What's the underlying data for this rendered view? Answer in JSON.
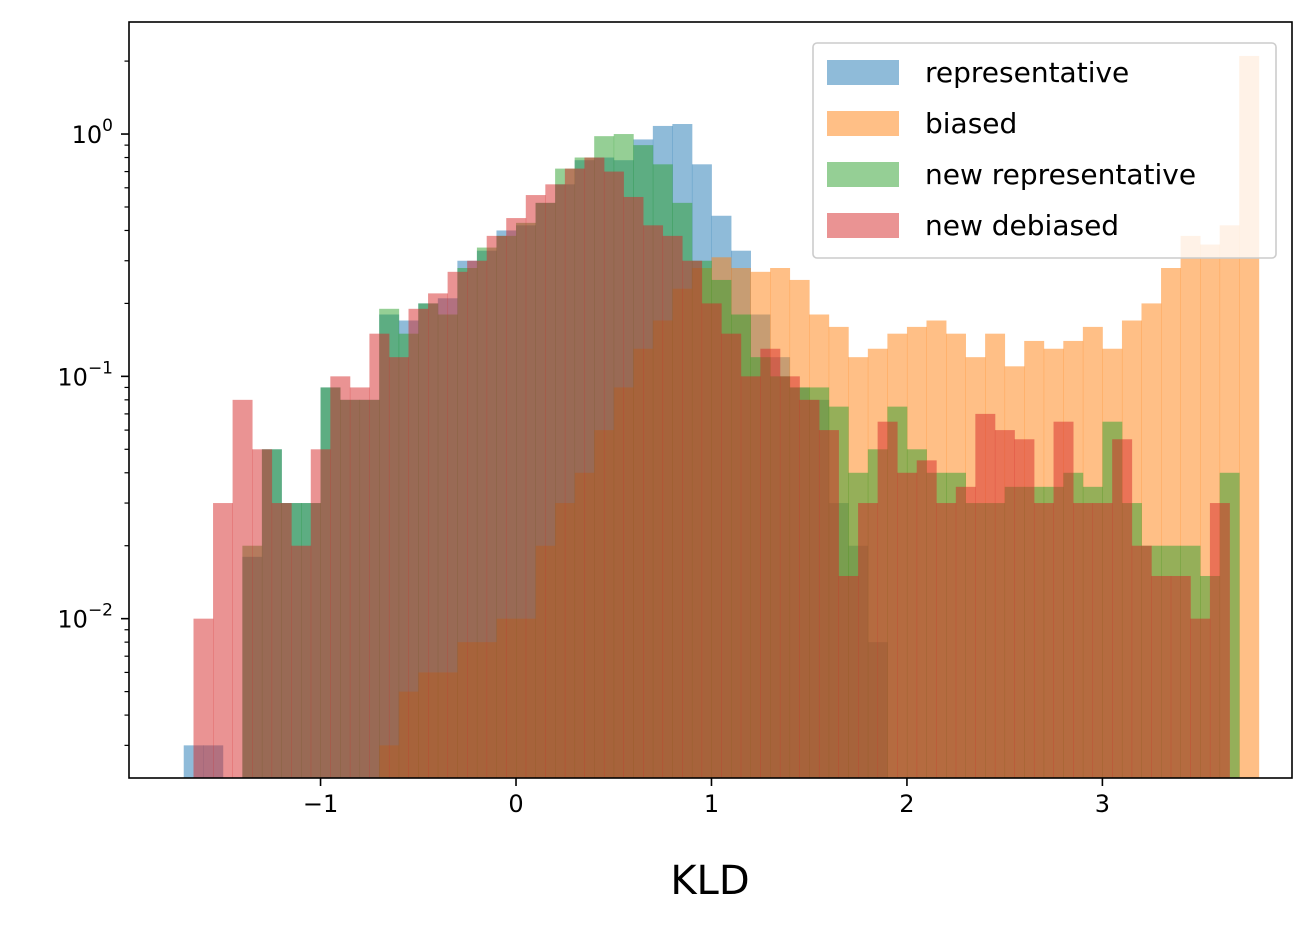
{
  "chart_data": {
    "type": "histogram",
    "xlabel": "KLD",
    "ylabel": "",
    "title": "",
    "xlim": [
      -1.98,
      3.97
    ],
    "ylim": [
      0.0022,
      2.9
    ],
    "yscale": "log",
    "xticks": [
      {
        "value": -1,
        "label": "−1"
      },
      {
        "value": 0,
        "label": "0"
      },
      {
        "value": 1,
        "label": "1"
      },
      {
        "value": 2,
        "label": "2"
      },
      {
        "value": 3,
        "label": "3"
      }
    ],
    "yticks": [
      {
        "value": 0.01,
        "base": "10",
        "exp": "−2"
      },
      {
        "value": 0.1,
        "base": "10",
        "exp": "−1"
      },
      {
        "value": 1,
        "base": "10",
        "exp": "0"
      }
    ],
    "legend": {
      "position": "top-right"
    },
    "series": [
      {
        "name": "representative",
        "color": "#1f77b4",
        "opacity": 0.5,
        "bins": [
          [
            -1.7,
            -1.6,
            0.003
          ],
          [
            -1.6,
            -1.5,
            0.003
          ],
          [
            -1.4,
            -1.3,
            0.018
          ],
          [
            -1.3,
            -1.2,
            0.05
          ],
          [
            -1.2,
            -1.1,
            0.03
          ],
          [
            -1.1,
            -1.0,
            0.03
          ],
          [
            -1.0,
            -0.9,
            0.09
          ],
          [
            -0.9,
            -0.8,
            0.08
          ],
          [
            -0.8,
            -0.7,
            0.08
          ],
          [
            -0.7,
            -0.6,
            0.18
          ],
          [
            -0.6,
            -0.5,
            0.17
          ],
          [
            -0.5,
            -0.4,
            0.2
          ],
          [
            -0.4,
            -0.3,
            0.21
          ],
          [
            -0.3,
            -0.2,
            0.3
          ],
          [
            -0.2,
            -0.1,
            0.33
          ],
          [
            -0.1,
            0.0,
            0.4
          ],
          [
            0.0,
            0.1,
            0.42
          ],
          [
            0.1,
            0.2,
            0.52
          ],
          [
            0.2,
            0.3,
            0.62
          ],
          [
            0.3,
            0.4,
            0.78
          ],
          [
            0.4,
            0.5,
            0.8
          ],
          [
            0.5,
            0.6,
            0.78
          ],
          [
            0.6,
            0.7,
            0.95
          ],
          [
            0.7,
            0.8,
            1.08
          ],
          [
            0.8,
            0.9,
            1.1
          ],
          [
            0.9,
            1.0,
            0.75
          ],
          [
            1.0,
            1.1,
            0.46
          ],
          [
            1.1,
            1.2,
            0.33
          ],
          [
            1.2,
            1.3,
            0.18
          ],
          [
            1.3,
            1.4,
            0.12
          ],
          [
            1.4,
            1.5,
            0.09
          ],
          [
            1.5,
            1.6,
            0.08
          ],
          [
            1.6,
            1.7,
            0.03
          ],
          [
            1.7,
            1.8,
            0.02
          ],
          [
            1.8,
            1.9,
            0.008
          ]
        ]
      },
      {
        "name": "biased",
        "color": "#ff7f0e",
        "opacity": 0.5,
        "bins": [
          [
            -0.7,
            -0.6,
            0.003
          ],
          [
            -0.6,
            -0.5,
            0.005
          ],
          [
            -0.5,
            -0.4,
            0.006
          ],
          [
            -0.4,
            -0.3,
            0.006
          ],
          [
            -0.3,
            -0.2,
            0.008
          ],
          [
            -0.2,
            -0.1,
            0.008
          ],
          [
            -0.1,
            0.0,
            0.01
          ],
          [
            0.0,
            0.1,
            0.01
          ],
          [
            0.1,
            0.2,
            0.02
          ],
          [
            0.2,
            0.3,
            0.03
          ],
          [
            0.3,
            0.4,
            0.04
          ],
          [
            0.4,
            0.5,
            0.06
          ],
          [
            0.5,
            0.6,
            0.09
          ],
          [
            0.6,
            0.7,
            0.13
          ],
          [
            0.7,
            0.8,
            0.17
          ],
          [
            0.8,
            0.9,
            0.23
          ],
          [
            0.9,
            1.0,
            0.28
          ],
          [
            1.0,
            1.1,
            0.31
          ],
          [
            1.1,
            1.2,
            0.28
          ],
          [
            1.2,
            1.3,
            0.27
          ],
          [
            1.3,
            1.4,
            0.28
          ],
          [
            1.4,
            1.5,
            0.25
          ],
          [
            1.5,
            1.6,
            0.18
          ],
          [
            1.6,
            1.7,
            0.16
          ],
          [
            1.7,
            1.8,
            0.12
          ],
          [
            1.8,
            1.9,
            0.13
          ],
          [
            1.9,
            2.0,
            0.15
          ],
          [
            2.0,
            2.1,
            0.16
          ],
          [
            2.1,
            2.2,
            0.17
          ],
          [
            2.2,
            2.3,
            0.15
          ],
          [
            2.3,
            2.4,
            0.12
          ],
          [
            2.4,
            2.5,
            0.15
          ],
          [
            2.5,
            2.6,
            0.11
          ],
          [
            2.6,
            2.7,
            0.14
          ],
          [
            2.7,
            2.8,
            0.13
          ],
          [
            2.8,
            2.9,
            0.14
          ],
          [
            2.9,
            3.0,
            0.16
          ],
          [
            3.0,
            3.1,
            0.13
          ],
          [
            3.1,
            3.2,
            0.17
          ],
          [
            3.2,
            3.3,
            0.2
          ],
          [
            3.3,
            3.4,
            0.28
          ],
          [
            3.4,
            3.5,
            0.38
          ],
          [
            3.5,
            3.6,
            0.35
          ],
          [
            3.6,
            3.7,
            0.42
          ],
          [
            3.7,
            3.8,
            2.1
          ]
        ]
      },
      {
        "name": "new representative",
        "color": "#2ca02c",
        "opacity": 0.5,
        "bins": [
          [
            -1.4,
            -1.3,
            0.02
          ],
          [
            -1.3,
            -1.2,
            0.05
          ],
          [
            -1.2,
            -1.1,
            0.03
          ],
          [
            -1.1,
            -1.0,
            0.03
          ],
          [
            -1.0,
            -0.9,
            0.09
          ],
          [
            -0.9,
            -0.8,
            0.08
          ],
          [
            -0.8,
            -0.7,
            0.08
          ],
          [
            -0.7,
            -0.6,
            0.19
          ],
          [
            -0.6,
            -0.5,
            0.15
          ],
          [
            -0.5,
            -0.4,
            0.2
          ],
          [
            -0.4,
            -0.3,
            0.18
          ],
          [
            -0.3,
            -0.2,
            0.28
          ],
          [
            -0.2,
            -0.1,
            0.34
          ],
          [
            -0.1,
            0.0,
            0.38
          ],
          [
            0.0,
            0.1,
            0.43
          ],
          [
            0.1,
            0.2,
            0.52
          ],
          [
            0.2,
            0.3,
            0.72
          ],
          [
            0.3,
            0.4,
            0.8
          ],
          [
            0.4,
            0.5,
            0.98
          ],
          [
            0.5,
            0.6,
            1.0
          ],
          [
            0.6,
            0.7,
            0.9
          ],
          [
            0.7,
            0.8,
            0.75
          ],
          [
            0.8,
            0.9,
            0.52
          ],
          [
            0.9,
            1.0,
            0.3
          ],
          [
            1.0,
            1.1,
            0.25
          ],
          [
            1.1,
            1.2,
            0.18
          ],
          [
            1.2,
            1.3,
            0.12
          ],
          [
            1.3,
            1.4,
            0.1
          ],
          [
            1.4,
            1.5,
            0.09
          ],
          [
            1.5,
            1.6,
            0.09
          ],
          [
            1.6,
            1.7,
            0.075
          ],
          [
            1.7,
            1.8,
            0.04
          ],
          [
            1.8,
            1.9,
            0.05
          ],
          [
            1.9,
            2.0,
            0.075
          ],
          [
            2.0,
            2.1,
            0.05
          ],
          [
            2.1,
            2.2,
            0.04
          ],
          [
            2.2,
            2.3,
            0.04
          ],
          [
            2.3,
            2.4,
            0.03
          ],
          [
            2.4,
            2.5,
            0.03
          ],
          [
            2.5,
            2.6,
            0.035
          ],
          [
            2.6,
            2.7,
            0.035
          ],
          [
            2.7,
            2.8,
            0.035
          ],
          [
            2.8,
            2.9,
            0.04
          ],
          [
            2.9,
            3.0,
            0.035
          ],
          [
            3.0,
            3.1,
            0.065
          ],
          [
            3.1,
            3.2,
            0.03
          ],
          [
            3.2,
            3.3,
            0.02
          ],
          [
            3.3,
            3.4,
            0.02
          ],
          [
            3.4,
            3.5,
            0.02
          ],
          [
            3.5,
            3.6,
            0.015
          ],
          [
            3.6,
            3.7,
            0.04
          ]
        ]
      },
      {
        "name": "new debiased",
        "color": "#d62728",
        "opacity": 0.5,
        "bins": [
          [
            -1.65,
            -1.55,
            0.01
          ],
          [
            -1.55,
            -1.45,
            0.03
          ],
          [
            -1.45,
            -1.35,
            0.08
          ],
          [
            -1.35,
            -1.25,
            0.05
          ],
          [
            -1.25,
            -1.15,
            0.03
          ],
          [
            -1.15,
            -1.05,
            0.02
          ],
          [
            -1.05,
            -0.95,
            0.05
          ],
          [
            -0.95,
            -0.85,
            0.1
          ],
          [
            -0.85,
            -0.75,
            0.09
          ],
          [
            -0.75,
            -0.65,
            0.15
          ],
          [
            -0.65,
            -0.55,
            0.12
          ],
          [
            -0.55,
            -0.45,
            0.19
          ],
          [
            -0.45,
            -0.35,
            0.22
          ],
          [
            -0.35,
            -0.25,
            0.27
          ],
          [
            -0.25,
            -0.15,
            0.3
          ],
          [
            -0.15,
            -0.05,
            0.38
          ],
          [
            -0.05,
            0.05,
            0.45
          ],
          [
            0.05,
            0.15,
            0.56
          ],
          [
            0.15,
            0.25,
            0.62
          ],
          [
            0.25,
            0.35,
            0.72
          ],
          [
            0.35,
            0.45,
            0.8
          ],
          [
            0.45,
            0.55,
            0.7
          ],
          [
            0.55,
            0.65,
            0.55
          ],
          [
            0.65,
            0.75,
            0.42
          ],
          [
            0.75,
            0.85,
            0.38
          ],
          [
            0.85,
            0.95,
            0.3
          ],
          [
            0.95,
            1.05,
            0.2
          ],
          [
            1.05,
            1.15,
            0.15
          ],
          [
            1.15,
            1.25,
            0.1
          ],
          [
            1.25,
            1.35,
            0.13
          ],
          [
            1.35,
            1.45,
            0.1
          ],
          [
            1.45,
            1.55,
            0.08
          ],
          [
            1.55,
            1.65,
            0.06
          ],
          [
            1.65,
            1.75,
            0.015
          ],
          [
            1.75,
            1.85,
            0.03
          ],
          [
            1.85,
            1.95,
            0.065
          ],
          [
            1.95,
            2.05,
            0.04
          ],
          [
            2.05,
            2.15,
            0.045
          ],
          [
            2.15,
            2.25,
            0.03
          ],
          [
            2.25,
            2.35,
            0.035
          ],
          [
            2.35,
            2.45,
            0.07
          ],
          [
            2.45,
            2.55,
            0.06
          ],
          [
            2.55,
            2.65,
            0.055
          ],
          [
            2.65,
            2.75,
            0.03
          ],
          [
            2.75,
            2.85,
            0.065
          ],
          [
            2.85,
            2.95,
            0.03
          ],
          [
            2.95,
            3.05,
            0.03
          ],
          [
            3.05,
            3.15,
            0.055
          ],
          [
            3.15,
            3.25,
            0.02
          ],
          [
            3.25,
            3.35,
            0.015
          ],
          [
            3.35,
            3.45,
            0.015
          ],
          [
            3.45,
            3.55,
            0.01
          ],
          [
            3.55,
            3.65,
            0.03
          ]
        ]
      }
    ]
  }
}
